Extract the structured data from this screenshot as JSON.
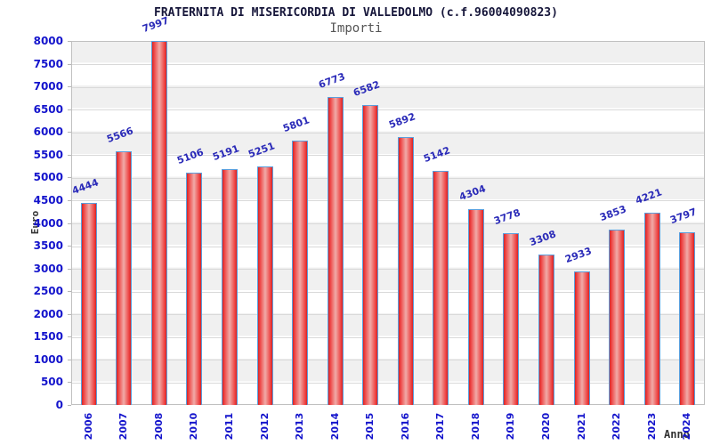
{
  "header": {
    "title": "FRATERNITA DI MISERICORDIA DI VALLEDOLMO (c.f.96004090823)",
    "subtitle": "Importi"
  },
  "axes": {
    "y_title": "Euro",
    "x_title": "Anno"
  },
  "colors": {
    "title": "#16163a",
    "subtitle": "#555555",
    "axis_title": "#333333",
    "tick_label": "#1414cc",
    "value_label": "#2a2ab8",
    "bar_edge": "#d42525",
    "bar_mid": "#ee4040",
    "bar_center": "#f0aba8",
    "bar_border": "#5b9fdd",
    "grid_line": "#d9d9d9",
    "band_gray": "#f0f0f0",
    "band_white": "#ffffff",
    "plot_border": "#c0c0c0"
  },
  "chart_data": {
    "type": "bar",
    "title": "FRATERNITA DI MISERICORDIA DI VALLEDOLMO (c.f.96004090823)",
    "subtitle": "Importi",
    "xlabel": "Anno",
    "ylabel": "Euro",
    "ylim": [
      0,
      8000
    ],
    "ytick_step": 500,
    "grid": true,
    "legend_position": "none",
    "background_bands": "alternating horizontal stripes every 500",
    "bar_labels_rotation_deg": -20,
    "x_labels_rotation_deg": -90,
    "categories": [
      "2006",
      "2007",
      "2008",
      "2010",
      "2011",
      "2012",
      "2013",
      "2014",
      "2015",
      "2016",
      "2017",
      "2018",
      "2019",
      "2020",
      "2021",
      "2022",
      "2023",
      "2024"
    ],
    "values": [
      4444,
      5566,
      7997,
      5106,
      5191,
      5251,
      5801,
      6773,
      6582,
      5892,
      5142,
      4304,
      3778,
      3308,
      2933,
      3853,
      4221,
      3797
    ]
  }
}
